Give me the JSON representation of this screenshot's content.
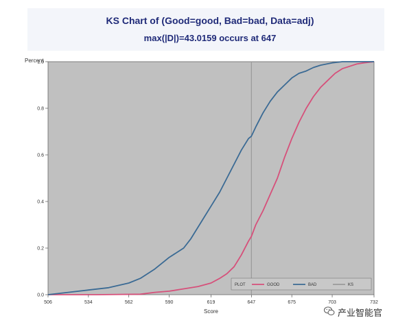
{
  "chart_data": {
    "type": "line",
    "title": "KS Chart of (Good=good, Bad=bad, Data=adj)",
    "subtitle": "max(|D|)=43.0159 occurs at      647",
    "xlabel": "Score",
    "ylabel": "Percent",
    "xlim": [
      506,
      732
    ],
    "ylim": [
      0,
      1.0
    ],
    "x_ticks": [
      506,
      534,
      562,
      590,
      619,
      647,
      675,
      703,
      732
    ],
    "y_ticks": [
      "0.0",
      "0.2",
      "0.4",
      "0.6",
      "0.8",
      "1.0"
    ],
    "ks_line_x": 647,
    "legend_title": "PLOT",
    "legend_position": "bottom-right",
    "series": [
      {
        "name": "GOOD",
        "color": "#d6507a",
        "x": [
          506,
          540,
          570,
          580,
          590,
          600,
          610,
          619,
          625,
          630,
          635,
          640,
          645,
          647,
          650,
          655,
          660,
          665,
          670,
          675,
          680,
          685,
          690,
          695,
          700,
          705,
          710,
          715,
          720,
          725,
          732
        ],
        "y": [
          0.0,
          0.0,
          0.002,
          0.01,
          0.015,
          0.025,
          0.035,
          0.05,
          0.07,
          0.09,
          0.12,
          0.17,
          0.23,
          0.25,
          0.3,
          0.36,
          0.43,
          0.5,
          0.59,
          0.67,
          0.74,
          0.8,
          0.85,
          0.89,
          0.92,
          0.95,
          0.97,
          0.98,
          0.99,
          0.995,
          1.0
        ]
      },
      {
        "name": "BAD",
        "color": "#3a6a94",
        "x": [
          506,
          520,
          534,
          548,
          562,
          570,
          580,
          590,
          600,
          605,
          610,
          615,
          619,
          625,
          630,
          635,
          640,
          645,
          647,
          650,
          655,
          660,
          665,
          670,
          675,
          680,
          685,
          690,
          695,
          703,
          710,
          720,
          732
        ],
        "y": [
          0.0,
          0.01,
          0.02,
          0.03,
          0.05,
          0.07,
          0.11,
          0.16,
          0.2,
          0.24,
          0.29,
          0.34,
          0.38,
          0.44,
          0.5,
          0.56,
          0.62,
          0.67,
          0.68,
          0.72,
          0.78,
          0.83,
          0.87,
          0.9,
          0.93,
          0.95,
          0.96,
          0.975,
          0.985,
          0.995,
          1.0,
          1.0,
          1.0
        ]
      },
      {
        "name": "KS",
        "color": "#9a9a9a"
      }
    ]
  },
  "watermark": {
    "text": "产业智能官",
    "icon": "wechat-icon"
  }
}
